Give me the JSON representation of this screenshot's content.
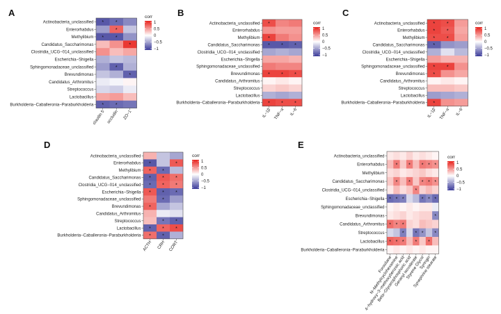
{
  "colors": {
    "negative": "#3a3a99",
    "neutral": "#ffffff",
    "positive": "#e8221c",
    "border": "#555555"
  },
  "chart_data": [
    {
      "type": "heatmap",
      "panel": "A",
      "rows": [
        "Actinobacteria_unclassified",
        "Enterorhabdus",
        "Methylibium",
        "Candidatus_Saccharimonas",
        "Clostridia_UCG−014_unclassified",
        "Escherichia−Shigella",
        "Sphingomonadaceae_unclassified",
        "Brevundimonas",
        "Candidatus_Arthromitus",
        "Streptococcus",
        "Lactobacillus",
        "Burkholderia−Caballeronia−Paraburkholderia"
      ],
      "columns": [
        "claudin 5",
        "occludin",
        "ZO−1"
      ],
      "values": [
        [
          -0.85,
          -0.75,
          -0.6
        ],
        [
          -0.5,
          0.7,
          -0.3
        ],
        [
          -0.85,
          -0.85,
          -0.55
        ],
        [
          0.3,
          0.5,
          0.9
        ],
        [
          0.5,
          0.3,
          0.4
        ],
        [
          -0.4,
          -0.3,
          -0.35
        ],
        [
          -0.5,
          -0.8,
          -0.4
        ],
        [
          -0.3,
          -0.4,
          -0.8
        ],
        [
          -0.1,
          -0.05,
          0.05
        ],
        [
          -0.2,
          -0.25,
          -0.1
        ],
        [
          0.4,
          0.45,
          0.3
        ],
        [
          -0.8,
          -0.75,
          -0.7
        ]
      ],
      "signif": [
        [
          1,
          1,
          0
        ],
        [
          0,
          1,
          0
        ],
        [
          1,
          1,
          0
        ],
        [
          0,
          0,
          1
        ],
        [
          0,
          0,
          0
        ],
        [
          0,
          0,
          0
        ],
        [
          0,
          1,
          0
        ],
        [
          0,
          0,
          1
        ],
        [
          0,
          0,
          0
        ],
        [
          0,
          0,
          0
        ],
        [
          0,
          0,
          0
        ],
        [
          1,
          1,
          0
        ]
      ],
      "legend": {
        "title": "corr",
        "ticks": [
          "1",
          "0.5",
          "0",
          "−0.5",
          "−1"
        ],
        "range": [
          -1,
          1
        ]
      }
    },
    {
      "type": "heatmap",
      "panel": "B",
      "rows": [
        "Actinobacteria_unclassified",
        "Enterorhabdus",
        "Methylibium",
        "Candidatus_Saccharimonas",
        "Clostridia_UCG−014_unclassified",
        "Escherichia−Shigella",
        "Sphingomonadaceae_unclassified",
        "Brevundimonas",
        "Candidatus_Arthromitus",
        "Streptococcus",
        "Lactobacillus",
        "Burkholderia−Caballeronia−Paraburkholderia"
      ],
      "columns": [
        "IL−1β",
        "TNF−a",
        "IL−6"
      ],
      "values": [
        [
          0.8,
          0.55,
          0.6
        ],
        [
          0.5,
          0.45,
          0.45
        ],
        [
          0.85,
          0.6,
          0.5
        ],
        [
          -0.85,
          -0.85,
          -0.8
        ],
        [
          -0.45,
          -0.4,
          -0.45
        ],
        [
          0.4,
          0.4,
          0.35
        ],
        [
          0.6,
          0.55,
          0.55
        ],
        [
          0.85,
          0.85,
          0.8
        ],
        [
          0.05,
          0.1,
          0.05
        ],
        [
          0.2,
          0.25,
          0.2
        ],
        [
          -0.4,
          -0.45,
          -0.4
        ],
        [
          0.85,
          0.8,
          0.8
        ]
      ],
      "signif": [
        [
          1,
          0,
          0
        ],
        [
          0,
          0,
          0
        ],
        [
          1,
          0,
          0
        ],
        [
          1,
          1,
          1
        ],
        [
          0,
          0,
          0
        ],
        [
          0,
          0,
          0
        ],
        [
          0,
          0,
          0
        ],
        [
          1,
          1,
          1
        ],
        [
          0,
          0,
          0
        ],
        [
          0,
          0,
          0
        ],
        [
          0,
          0,
          0
        ],
        [
          1,
          1,
          1
        ]
      ],
      "legend": {
        "title": "corr",
        "ticks": [
          "1",
          "0.5",
          "0",
          "−0.5",
          "−1"
        ],
        "range": [
          -1,
          1
        ]
      }
    },
    {
      "type": "heatmap",
      "panel": "C",
      "rows": [
        "Actinobacteria_unclassified",
        "Enterorhabdus",
        "Methylibium",
        "Candidatus_Saccharimonas",
        "Clostridia_UCG−014_unclassified",
        "Escherichia−Shigella",
        "Sphingomonadaceae_unclassified",
        "Brevundimonas",
        "Candidatus_Arthromitus",
        "Streptococcus",
        "Lactobacillus",
        "Burkholderia−Caballeronia−Paraburkholderia"
      ],
      "columns": [
        "IL−1β",
        "TNF−a",
        "IL−6"
      ],
      "values": [
        [
          0.85,
          0.8,
          0.45
        ],
        [
          0.85,
          0.75,
          0.4
        ],
        [
          0.8,
          0.8,
          0.45
        ],
        [
          -0.8,
          -0.55,
          -0.5
        ],
        [
          -0.4,
          -0.15,
          -0.35
        ],
        [
          0.45,
          0.35,
          0.35
        ],
        [
          0.85,
          0.85,
          0.5
        ],
        [
          0.8,
          0.5,
          0.4
        ],
        [
          0.05,
          0.1,
          0.05
        ],
        [
          0.3,
          0.3,
          0.25
        ],
        [
          -0.5,
          -0.45,
          -0.4
        ],
        [
          0.85,
          0.5,
          0.45
        ]
      ],
      "signif": [
        [
          1,
          1,
          0
        ],
        [
          1,
          1,
          0
        ],
        [
          1,
          1,
          0
        ],
        [
          1,
          0,
          0
        ],
        [
          0,
          0,
          0
        ],
        [
          0,
          0,
          0
        ],
        [
          1,
          1,
          0
        ],
        [
          1,
          0,
          0
        ],
        [
          0,
          0,
          0
        ],
        [
          0,
          0,
          0
        ],
        [
          0,
          0,
          0
        ],
        [
          1,
          0,
          0
        ]
      ],
      "legend": {
        "title": "corr",
        "ticks": [
          "1",
          "0.5",
          "0",
          "−0.5",
          "−1"
        ],
        "range": [
          -1,
          1
        ]
      }
    },
    {
      "type": "heatmap",
      "panel": "D",
      "rows": [
        "Actinobacteria_unclassified",
        "Enterorhabdus",
        "Methylibium",
        "Candidatus_Saccharimonas",
        "Clostridia_UCG−014_unclassified",
        "Escherichia−Shigella",
        "Sphingomonadaceae_unclassified",
        "Brevundimonas",
        "Candidatus_Arthromitus",
        "Streptococcus",
        "Lactobacillus",
        "Burkholderia−Caballeronia−Paraburkholderia"
      ],
      "columns": [
        "ACTH",
        "CRH",
        "CORT"
      ],
      "values": [
        [
          0.35,
          -0.3,
          -0.45
        ],
        [
          -0.85,
          -0.3,
          0.75
        ],
        [
          0.7,
          -0.75,
          -0.35
        ],
        [
          -0.8,
          0.75,
          0.65
        ],
        [
          -0.75,
          0.7,
          0.6
        ],
        [
          0.75,
          -0.8,
          -0.75
        ],
        [
          0.6,
          -0.75,
          -0.5
        ],
        [
          0.7,
          -0.45,
          -0.3
        ],
        [
          0.35,
          -0.1,
          -0.15
        ],
        [
          0.3,
          -0.7,
          -0.8
        ],
        [
          -0.8,
          0.7,
          0.8
        ],
        [
          0.65,
          -0.8,
          -0.4
        ]
      ],
      "signif": [
        [
          0,
          0,
          0
        ],
        [
          1,
          0,
          1
        ],
        [
          1,
          1,
          0
        ],
        [
          1,
          1,
          1
        ],
        [
          1,
          1,
          1
        ],
        [
          1,
          1,
          1
        ],
        [
          0,
          1,
          0
        ],
        [
          1,
          0,
          0
        ],
        [
          0,
          0,
          0
        ],
        [
          0,
          1,
          1
        ],
        [
          1,
          1,
          1
        ],
        [
          1,
          1,
          0
        ]
      ],
      "legend": {
        "title": "corr",
        "ticks": [
          "1",
          "0.5",
          "0",
          "−0.5",
          "−1"
        ],
        "range": [
          -1,
          1
        ]
      }
    },
    {
      "type": "heatmap",
      "panel": "E",
      "rows": [
        "Actinobacteria_unclassified",
        "Enterorhabdus",
        "Methylibium",
        "Candidatus_Saccharimonas",
        "Clostridia_UCG−014_unclassified",
        "Escherichia−Shigella",
        "Sphingomonadaceae_unclassified",
        "Brevundimonas",
        "Candidatus_Arthromitus",
        "Streptococcus",
        "Lactobacillus",
        "Burkholderia−Caballeronia−Paraburkholderia"
      ],
      "columns": [
        "Furosilane",
        "N−Methylcyclohexamine",
        "4−hydroxy−3−methoxybenzoic acid",
        "Beta−Glycerophosphoric acid",
        "Geranyl isovalerate",
        "Styrene Glycol",
        "Syringin",
        "Synephrine stearate"
      ],
      "values": [
        [
          0.1,
          0.15,
          0.1,
          0.2,
          0.1,
          0.15,
          0.1,
          0.05
        ],
        [
          0.3,
          0.6,
          0.25,
          0.6,
          0.3,
          0.6,
          0.55,
          0.5
        ],
        [
          0.15,
          0.2,
          0.1,
          0.15,
          0.2,
          0.25,
          0.15,
          0.1
        ],
        [
          0.25,
          0.55,
          0.3,
          0.6,
          0.25,
          0.55,
          0.6,
          0.5
        ],
        [
          0.1,
          0.3,
          0.15,
          0.25,
          0.55,
          0.2,
          0.3,
          0.2
        ],
        [
          -0.75,
          -0.7,
          -0.65,
          -0.2,
          -0.35,
          -0.7,
          -0.6,
          -0.75
        ],
        [
          0.05,
          0.1,
          0.05,
          0.1,
          0.05,
          0.1,
          0.1,
          -0.1
        ],
        [
          0.1,
          0.15,
          0.2,
          0.1,
          0.15,
          0.2,
          0.2,
          -0.6
        ],
        [
          0.65,
          0.55,
          0.6,
          0.2,
          0.15,
          0.3,
          0.25,
          0.2
        ],
        [
          -0.2,
          -0.3,
          -0.65,
          -0.2,
          -0.7,
          -0.55,
          -0.3,
          -0.6
        ],
        [
          0.7,
          0.65,
          0.6,
          0.3,
          0.6,
          0.25,
          0.65,
          0.3
        ],
        [
          0.05,
          0.1,
          0.05,
          0.1,
          0.05,
          0.1,
          0.05,
          0.05
        ]
      ],
      "signif": [
        [
          0,
          0,
          0,
          0,
          0,
          0,
          0,
          0
        ],
        [
          0,
          1,
          0,
          1,
          0,
          1,
          1,
          1
        ],
        [
          0,
          0,
          0,
          0,
          0,
          0,
          0,
          0
        ],
        [
          0,
          1,
          0,
          1,
          0,
          1,
          1,
          1
        ],
        [
          0,
          0,
          0,
          0,
          1,
          0,
          0,
          0
        ],
        [
          1,
          1,
          1,
          0,
          0,
          1,
          1,
          1
        ],
        [
          0,
          0,
          0,
          0,
          0,
          0,
          0,
          0
        ],
        [
          0,
          0,
          0,
          0,
          0,
          0,
          0,
          1
        ],
        [
          1,
          1,
          1,
          0,
          0,
          0,
          0,
          0
        ],
        [
          0,
          0,
          1,
          0,
          1,
          1,
          0,
          1
        ],
        [
          1,
          1,
          1,
          0,
          1,
          0,
          1,
          0
        ],
        [
          0,
          0,
          0,
          0,
          0,
          0,
          0,
          0
        ]
      ],
      "legend": {
        "title": "corr",
        "ticks": [
          "1",
          "0.5",
          "0",
          "−0.5",
          "−1"
        ],
        "range": [
          -1,
          1
        ]
      }
    }
  ]
}
